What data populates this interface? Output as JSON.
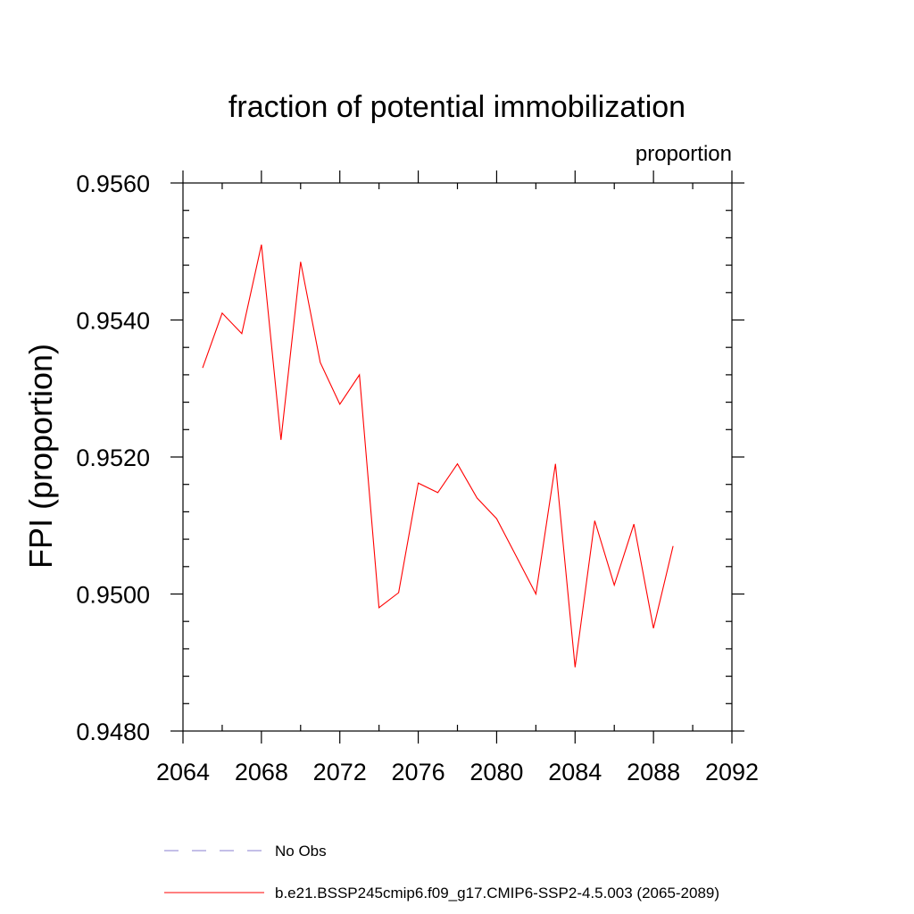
{
  "chart_data": {
    "type": "line",
    "title": "fraction of potential immobilization",
    "units_label": "proportion",
    "ylabel": "FPI  (proportion)",
    "xlabel": "",
    "xlim": [
      2064,
      2092
    ],
    "ylim": [
      0.948,
      0.956
    ],
    "x_ticks": [
      2064,
      2068,
      2072,
      2076,
      2080,
      2084,
      2088,
      2092
    ],
    "x_tick_labels": [
      "2064",
      "2068",
      "2072",
      "2076",
      "2080",
      "2084",
      "2088",
      "2092"
    ],
    "y_ticks": [
      0.948,
      0.95,
      0.952,
      0.954,
      0.956
    ],
    "y_tick_labels": [
      "0.9480",
      "0.9500",
      "0.9520",
      "0.9540",
      "0.9560"
    ],
    "grid": false,
    "series": [
      {
        "name": "b.e21.BSSP245cmip6.f09_g17.CMIP6-SSP2-4.5.003 (2065-2089)",
        "color": "#ff0000",
        "x": [
          2065,
          2066,
          2067,
          2068,
          2069,
          2070,
          2071,
          2072,
          2073,
          2074,
          2075,
          2076,
          2077,
          2078,
          2079,
          2080,
          2081,
          2082,
          2083,
          2084,
          2085,
          2086,
          2087,
          2088,
          2089
        ],
        "values": [
          0.9533,
          0.9541,
          0.9538,
          0.9551,
          0.95225,
          0.95485,
          0.95338,
          0.95277,
          0.9532,
          0.9498,
          0.95002,
          0.95162,
          0.95148,
          0.9519,
          0.9514,
          0.9511,
          0.95055,
          0.95,
          0.9519,
          0.94893,
          0.95107,
          0.95013,
          0.95102,
          0.9495,
          0.9507
        ]
      }
    ],
    "legend": [
      {
        "label": "No Obs",
        "style": "dashed",
        "color": "#8a7fd0"
      },
      {
        "label": "b.e21.BSSP245cmip6.f09_g17.CMIP6-SSP2-4.5.003 (2065-2089)",
        "style": "solid",
        "color": "#ff0000"
      }
    ],
    "legend_position": "bottom"
  }
}
